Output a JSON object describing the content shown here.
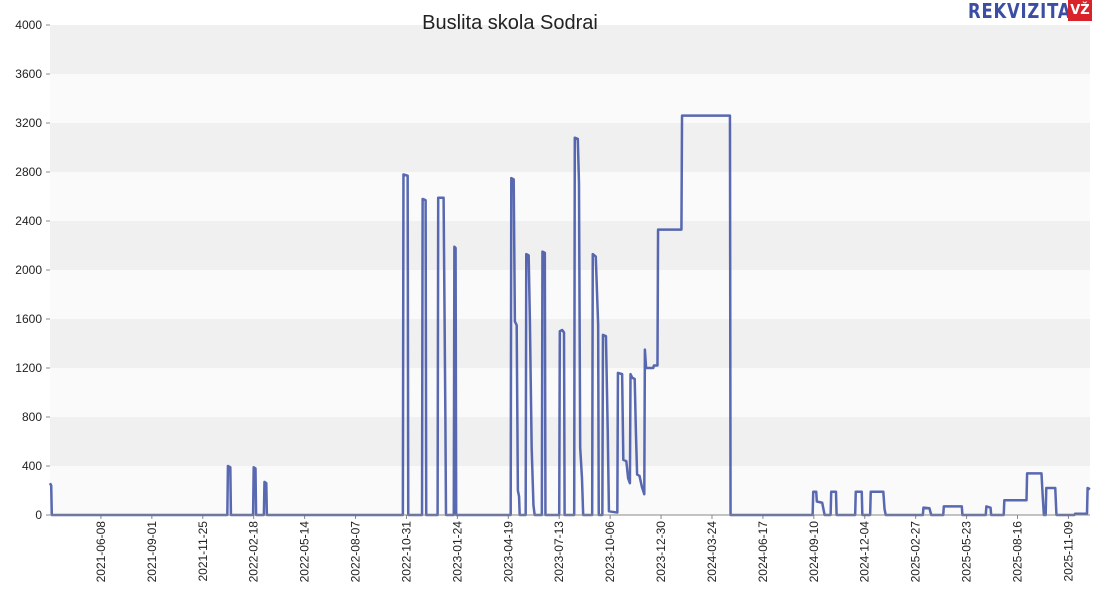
{
  "logo": {
    "text": "REKVIZITAI",
    "badge": "VŽ"
  },
  "chart_data": {
    "type": "line",
    "title": "Buslita skola Sodrai",
    "xlabel": "",
    "ylabel": "",
    "ylim": [
      0,
      4000
    ],
    "yticks": [
      0,
      400,
      800,
      1200,
      1600,
      2000,
      2400,
      2800,
      3200,
      3600,
      4000
    ],
    "xlim": [
      "2021-03-15",
      "2025-12-15"
    ],
    "xticks": [
      "2021-06-08",
      "2021-09-01",
      "2021-11-25",
      "2022-02-18",
      "2022-05-14",
      "2022-08-07",
      "2022-10-31",
      "2023-01-24",
      "2023-04-19",
      "2023-07-13",
      "2023-10-06",
      "2023-12-30",
      "2024-03-24",
      "2024-06-17",
      "2024-09-10",
      "2024-12-04",
      "2025-02-27",
      "2025-05-23",
      "2025-08-16",
      "2025-11-09"
    ],
    "grid": "horizontal bands",
    "line_color": "#3b4ea3",
    "band_colors": [
      "#f0f0f0",
      "#fafafa"
    ],
    "series": [
      {
        "points": [
          [
            "2021-03-15",
            260
          ],
          [
            "2021-03-17",
            240
          ],
          [
            "2021-03-18",
            0
          ],
          [
            "2022-01-05",
            0
          ],
          [
            "2022-01-06",
            400
          ],
          [
            "2022-01-10",
            390
          ],
          [
            "2022-01-11",
            0
          ],
          [
            "2022-02-17",
            0
          ],
          [
            "2022-02-18",
            390
          ],
          [
            "2022-02-21",
            380
          ],
          [
            "2022-02-22",
            0
          ],
          [
            "2022-03-07",
            0
          ],
          [
            "2022-03-08",
            270
          ],
          [
            "2022-03-11",
            260
          ],
          [
            "2022-03-12",
            0
          ],
          [
            "2022-10-25",
            0
          ],
          [
            "2022-10-26",
            2780
          ],
          [
            "2022-11-02",
            2770
          ],
          [
            "2022-11-03",
            0
          ],
          [
            "2022-11-26",
            0
          ],
          [
            "2022-11-27",
            2580
          ],
          [
            "2022-12-02",
            2570
          ],
          [
            "2022-12-03",
            0
          ],
          [
            "2022-12-22",
            0
          ],
          [
            "2022-12-23",
            2590
          ],
          [
            "2023-01-01",
            2590
          ],
          [
            "2023-01-04",
            780
          ],
          [
            "2023-01-05",
            0
          ],
          [
            "2023-01-18",
            0
          ],
          [
            "2023-01-19",
            2190
          ],
          [
            "2023-01-21",
            2180
          ],
          [
            "2023-01-22",
            0
          ],
          [
            "2023-04-23",
            0
          ],
          [
            "2023-04-24",
            2750
          ],
          [
            "2023-04-28",
            2740
          ],
          [
            "2023-04-30",
            1580
          ],
          [
            "2023-05-03",
            1550
          ],
          [
            "2023-05-05",
            200
          ],
          [
            "2023-05-07",
            150
          ],
          [
            "2023-05-08",
            0
          ],
          [
            "2023-05-18",
            0
          ],
          [
            "2023-05-19",
            2130
          ],
          [
            "2023-05-23",
            2120
          ],
          [
            "2023-05-25",
            1600
          ],
          [
            "2023-05-28",
            550
          ],
          [
            "2023-05-31",
            80
          ],
          [
            "2023-06-02",
            0
          ],
          [
            "2023-06-14",
            0
          ],
          [
            "2023-06-15",
            2150
          ],
          [
            "2023-06-19",
            2140
          ],
          [
            "2023-06-20",
            0
          ],
          [
            "2023-07-13",
            0
          ],
          [
            "2023-07-14",
            1500
          ],
          [
            "2023-07-18",
            1510
          ],
          [
            "2023-07-21",
            1490
          ],
          [
            "2023-07-22",
            0
          ],
          [
            "2023-08-07",
            0
          ],
          [
            "2023-08-08",
            3080
          ],
          [
            "2023-08-13",
            3070
          ],
          [
            "2023-08-15",
            2710
          ],
          [
            "2023-08-17",
            550
          ],
          [
            "2023-08-20",
            300
          ],
          [
            "2023-08-22",
            0
          ],
          [
            "2023-09-06",
            0
          ],
          [
            "2023-09-07",
            2130
          ],
          [
            "2023-09-12",
            2110
          ],
          [
            "2023-09-16",
            1550
          ],
          [
            "2023-09-17",
            0
          ],
          [
            "2023-09-23",
            0
          ],
          [
            "2023-09-24",
            1470
          ],
          [
            "2023-09-29",
            1460
          ],
          [
            "2023-10-02",
            680
          ],
          [
            "2023-10-04",
            30
          ],
          [
            "2023-10-18",
            20
          ],
          [
            "2023-10-19",
            1160
          ],
          [
            "2023-10-26",
            1150
          ],
          [
            "2023-10-28",
            450
          ],
          [
            "2023-11-02",
            440
          ],
          [
            "2023-11-05",
            300
          ],
          [
            "2023-11-08",
            260
          ],
          [
            "2023-11-09",
            1150
          ],
          [
            "2023-11-12",
            1120
          ],
          [
            "2023-11-16",
            1110
          ],
          [
            "2023-11-18",
            680
          ],
          [
            "2023-11-20",
            330
          ],
          [
            "2023-11-24",
            320
          ],
          [
            "2023-11-28",
            230
          ],
          [
            "2023-12-02",
            170
          ],
          [
            "2023-12-03",
            1350
          ],
          [
            "2023-12-05",
            1200
          ],
          [
            "2023-12-17",
            1200
          ],
          [
            "2023-12-18",
            1220
          ],
          [
            "2023-12-24",
            1220
          ],
          [
            "2023-12-25",
            2330
          ],
          [
            "2024-02-02",
            2330
          ],
          [
            "2024-02-03",
            3260
          ],
          [
            "2024-03-24",
            3260
          ],
          [
            "2024-04-23",
            3260
          ],
          [
            "2024-04-24",
            0
          ],
          [
            "2024-09-08",
            0
          ],
          [
            "2024-09-09",
            190
          ],
          [
            "2024-09-14",
            190
          ],
          [
            "2024-09-15",
            110
          ],
          [
            "2024-09-24",
            100
          ],
          [
            "2024-09-28",
            0
          ],
          [
            "2024-10-08",
            0
          ],
          [
            "2024-10-09",
            190
          ],
          [
            "2024-10-17",
            190
          ],
          [
            "2024-10-18",
            0
          ],
          [
            "2024-11-18",
            0
          ],
          [
            "2024-11-19",
            190
          ],
          [
            "2024-11-29",
            190
          ],
          [
            "2024-11-30",
            0
          ],
          [
            "2024-12-13",
            0
          ],
          [
            "2024-12-14",
            190
          ],
          [
            "2025-01-04",
            190
          ],
          [
            "2025-01-06",
            50
          ],
          [
            "2025-01-08",
            0
          ],
          [
            "2025-03-11",
            0
          ],
          [
            "2025-03-12",
            60
          ],
          [
            "2025-03-22",
            55
          ],
          [
            "2025-03-25",
            0
          ],
          [
            "2025-04-14",
            0
          ],
          [
            "2025-04-15",
            70
          ],
          [
            "2025-05-15",
            70
          ],
          [
            "2025-05-16",
            0
          ],
          [
            "2025-06-24",
            0
          ],
          [
            "2025-06-25",
            70
          ],
          [
            "2025-07-02",
            60
          ],
          [
            "2025-07-03",
            0
          ],
          [
            "2025-07-24",
            0
          ],
          [
            "2025-07-25",
            120
          ],
          [
            "2025-08-31",
            120
          ],
          [
            "2025-09-01",
            340
          ],
          [
            "2025-09-25",
            340
          ],
          [
            "2025-09-27",
            160
          ],
          [
            "2025-09-29",
            0
          ],
          [
            "2025-10-02",
            0
          ],
          [
            "2025-10-03",
            220
          ],
          [
            "2025-10-18",
            220
          ],
          [
            "2025-10-20",
            0
          ],
          [
            "2025-11-19",
            0
          ],
          [
            "2025-11-20",
            10
          ],
          [
            "2025-12-10",
            10
          ],
          [
            "2025-12-11",
            220
          ],
          [
            "2025-12-15",
            210
          ]
        ]
      }
    ]
  }
}
